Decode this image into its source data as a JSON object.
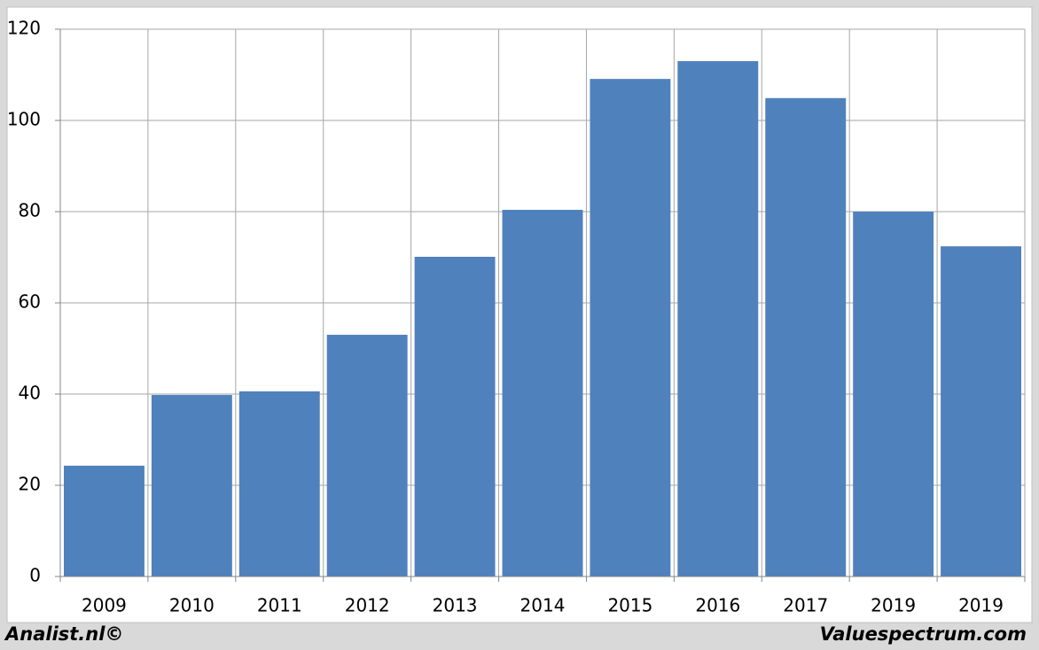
{
  "chart_data": {
    "type": "bar",
    "categories": [
      "2009",
      "2010",
      "2011",
      "2012",
      "2013",
      "2014",
      "2015",
      "2016",
      "2017",
      "2019",
      "2019"
    ],
    "values": [
      24.3,
      39.8,
      40.6,
      53.0,
      70.1,
      80.4,
      109.1,
      113.0,
      104.9,
      80.0,
      72.4
    ],
    "color": "#4f81bd",
    "ylim": [
      0,
      120
    ],
    "yticks": [
      0,
      20,
      40,
      60,
      80,
      100,
      120
    ],
    "grid": true,
    "footer_left": "Analist.nl©",
    "footer_right": "Valuespectrum.com"
  }
}
